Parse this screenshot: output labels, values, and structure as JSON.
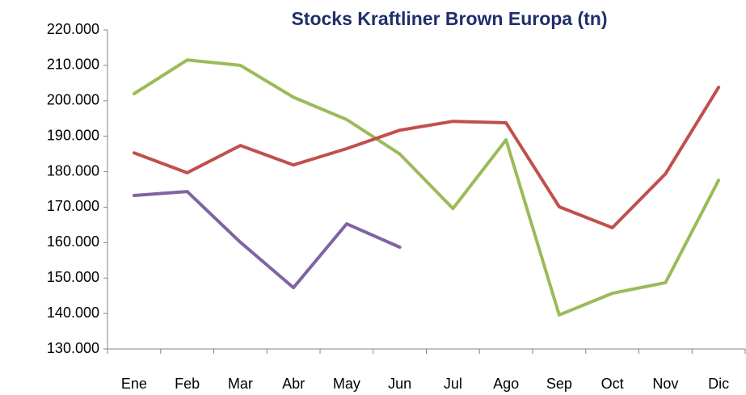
{
  "chart_data": {
    "type": "line",
    "title": "Stocks Kraftliner Brown Europa (tn)",
    "categories": [
      "Ene",
      "Feb",
      "Mar",
      "Abr",
      "May",
      "Jun",
      "Jul",
      "Ago",
      "Sep",
      "Oct",
      "Nov",
      "Dic"
    ],
    "series": [
      {
        "color": "#9bbb59",
        "values": [
          202000,
          211500,
          210000,
          201000,
          194700,
          185000,
          169600,
          189000,
          139600,
          145700,
          148700,
          177600
        ]
      },
      {
        "color": "#c0504d",
        "values": [
          185300,
          179700,
          187400,
          181900,
          186500,
          191700,
          194200,
          193800,
          170100,
          164200,
          179400,
          203800
        ]
      },
      {
        "color": "#8064a2",
        "values": [
          173300,
          174400,
          160100,
          147300,
          165300,
          158700,
          null,
          null,
          null,
          null,
          null,
          null
        ]
      }
    ],
    "ylim": [
      130000,
      220000
    ],
    "yticks": [
      {
        "value": 130000,
        "label": "130.000"
      },
      {
        "value": 140000,
        "label": "140.000"
      },
      {
        "value": 150000,
        "label": "150.000"
      },
      {
        "value": 160000,
        "label": "160.000"
      },
      {
        "value": 170000,
        "label": "170.000"
      },
      {
        "value": 180000,
        "label": "180.000"
      },
      {
        "value": 190000,
        "label": "190.000"
      },
      {
        "value": 200000,
        "label": "200.000"
      },
      {
        "value": 210000,
        "label": "210.000"
      },
      {
        "value": 220000,
        "label": "220.000"
      }
    ],
    "grid": false
  }
}
